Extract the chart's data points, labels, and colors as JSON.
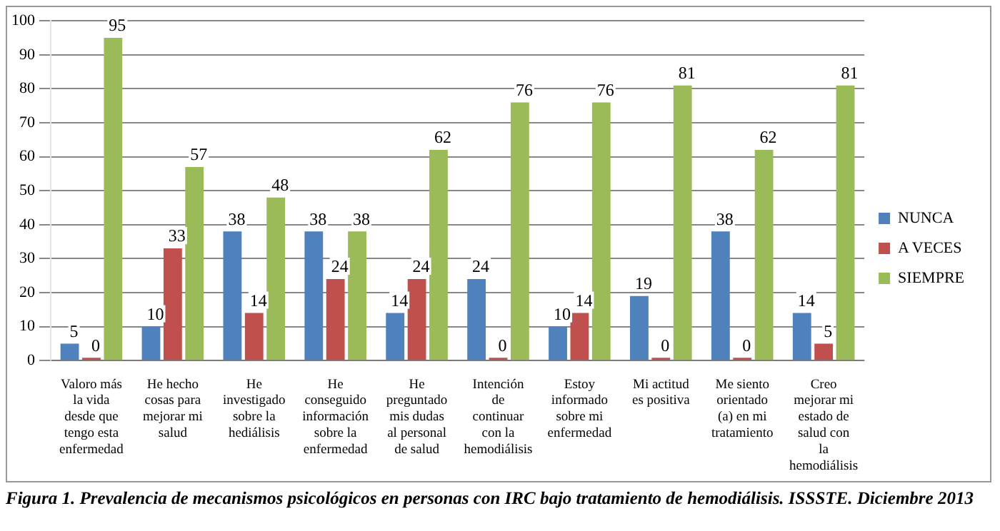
{
  "chart_data": {
    "type": "bar",
    "categories": [
      "Valoro más la vida desde que tengo esta enfermedad",
      "He hecho cosas para mejorar mi salud",
      "He investigado sobre la hediálisis",
      "He conseguido información sobre la enfermedad",
      "He preguntado mis dudas al personal de salud",
      "Intención de continuar con la hemodiálisis",
      "Estoy informado sobre mi enfermedad",
      "Mi actitud es positiva",
      "Me siento orientado (a) en mi tratamiento",
      "Creo mejorar mi estado de salud con la hemodiálisis"
    ],
    "series": [
      {
        "name": "NUNCA",
        "color": "#4f81bd",
        "values": [
          5,
          10,
          38,
          38,
          14,
          24,
          10,
          19,
          38,
          14
        ]
      },
      {
        "name": "A VECES",
        "color": "#c0504d",
        "values": [
          0,
          33,
          14,
          24,
          24,
          0,
          14,
          0,
          0,
          5
        ]
      },
      {
        "name": "SIEMPRE",
        "color": "#9bbb59",
        "values": [
          95,
          57,
          48,
          38,
          62,
          76,
          76,
          81,
          62,
          81
        ]
      }
    ],
    "ylim": [
      0,
      100
    ],
    "yticks": [
      0,
      10,
      20,
      30,
      40,
      50,
      60,
      70,
      80,
      90,
      100
    ],
    "grid": "y",
    "legend": "right",
    "data_labels": true,
    "annotations": [
      "Figura 1. Prevalencia de mecanismos psicológicos en personas con IRC bajo tratamiento de hemodiálisis. ISSSTE. Diciembre 2013"
    ]
  }
}
